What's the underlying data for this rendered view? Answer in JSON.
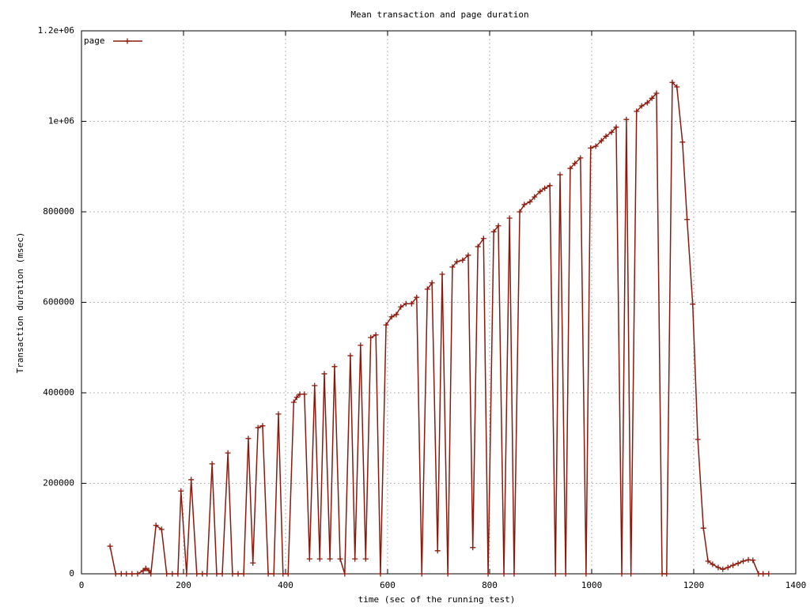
{
  "chart_data": {
    "type": "line",
    "title": "Mean transaction and page duration",
    "xlabel": "time (sec of the running test)",
    "ylabel": "Transaction duration (msec)",
    "xlim": [
      0,
      1400
    ],
    "ylim": [
      0,
      1200000
    ],
    "xticks": [
      0,
      200,
      400,
      600,
      800,
      1000,
      1200,
      1400
    ],
    "yticks": [
      0,
      200000,
      400000,
      600000,
      800000,
      {
        "value": 1000000,
        "label": "1e+06"
      },
      {
        "value": 1200000,
        "label": "1.2e+06"
      }
    ],
    "grid": true,
    "legend": "top-left",
    "series": [
      {
        "name": "page",
        "color": "#8b1a0e",
        "x": [
          56,
          67,
          78,
          88,
          99,
          110,
          121,
          126,
          132,
          136,
          146,
          157,
          167,
          178,
          189,
          195,
          206,
          215,
          226,
          237,
          246,
          256,
          265,
          276,
          287,
          296,
          307,
          318,
          327,
          336,
          346,
          355,
          366,
          377,
          386,
          395,
          405,
          416,
          422,
          428,
          437,
          447,
          457,
          467,
          476,
          487,
          496,
          507,
          516,
          527,
          536,
          547,
          557,
          567,
          577,
          586,
          597,
          608,
          617,
          626,
          636,
          647,
          657,
          667,
          678,
          687,
          698,
          707,
          718,
          727,
          736,
          747,
          758,
          767,
          777,
          788,
          797,
          808,
          817,
          828,
          839,
          848,
          859,
          868,
          879,
          888,
          899,
          908,
          918,
          929,
          938,
          949,
          958,
          967,
          978,
          989,
          998,
          1008,
          1019,
          1028,
          1039,
          1048,
          1059,
          1068,
          1077,
          1088,
          1098,
          1109,
          1118,
          1127,
          1138,
          1147,
          1158,
          1167,
          1178,
          1187,
          1198,
          1208,
          1219,
          1228,
          1237,
          1248,
          1257,
          1267,
          1277,
          1287,
          1297,
          1307,
          1316,
          1327,
          1336,
          1347
        ],
        "values": [
          61000,
          0,
          0,
          0,
          0,
          0,
          7000,
          12000,
          7000,
          0,
          107000,
          98000,
          0,
          0,
          0,
          183000,
          0,
          208000,
          0,
          0,
          0,
          243000,
          0,
          0,
          267000,
          0,
          0,
          0,
          299000,
          24000,
          323000,
          327000,
          0,
          0,
          353000,
          0,
          0,
          379000,
          390000,
          397000,
          397000,
          33000,
          416000,
          33000,
          442000,
          33000,
          458000,
          33000,
          0,
          482000,
          33000,
          505000,
          33000,
          522000,
          528000,
          0,
          550000,
          568000,
          573000,
          590000,
          597000,
          597000,
          611000,
          0,
          629000,
          643000,
          51000,
          662000,
          0,
          678000,
          690000,
          693000,
          704000,
          58000,
          723000,
          741000,
          0,
          756000,
          769000,
          0,
          786000,
          0,
          800000,
          816000,
          822000,
          833000,
          845000,
          852000,
          858000,
          0,
          882000,
          0,
          896000,
          907000,
          919000,
          0,
          941000,
          945000,
          957000,
          967000,
          976000,
          987000,
          0,
          1004000,
          0,
          1022000,
          1034000,
          1041000,
          1051000,
          1062000,
          0,
          0,
          1086000,
          1076000,
          954000,
          783000,
          596000,
          297000,
          101000,
          28000,
          21000,
          14000,
          10000,
          14000,
          19000,
          23000,
          28000,
          31000,
          30000,
          0,
          0,
          0
        ]
      }
    ]
  }
}
